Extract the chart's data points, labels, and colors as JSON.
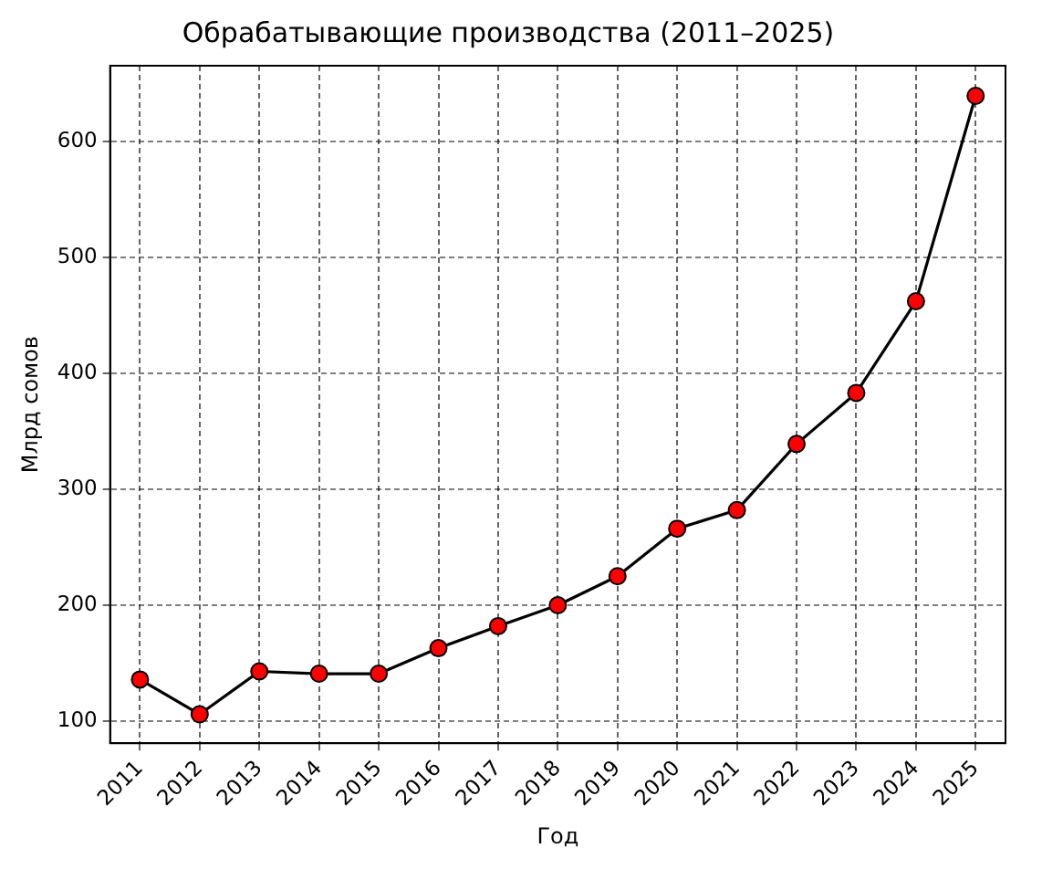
{
  "chart_data": {
    "type": "line",
    "title": "Обрабатывающие производства (2011–2025)",
    "xlabel": "Год",
    "ylabel": "Млрд сомов",
    "categories": [
      "2011",
      "2012",
      "2013",
      "2014",
      "2015",
      "2016",
      "2017",
      "2018",
      "2019",
      "2020",
      "2021",
      "2022",
      "2023",
      "2024",
      "2025"
    ],
    "series": [
      {
        "color": "#000000",
        "colors": [
          "#ff0000",
          "#ff0000",
          "#ff0000",
          "#ff0000",
          "#ff0000",
          "#ff0000",
          "#ff0000",
          "#ff0000",
          "#ff0000",
          "#ff0000",
          "#ff0000",
          "#ff0000",
          "#ff0000",
          "#ff0000",
          "#ff0000"
        ],
        "values": [
          136,
          106,
          143,
          141,
          141,
          163,
          182,
          200,
          225,
          266,
          282,
          339,
          383,
          462,
          639
        ]
      }
    ],
    "ylim": [
      81,
      665
    ],
    "yticks": [
      100,
      200,
      300,
      400,
      500,
      600
    ],
    "grid": true,
    "marker": "circle",
    "line_style": "solid",
    "legend": false
  }
}
